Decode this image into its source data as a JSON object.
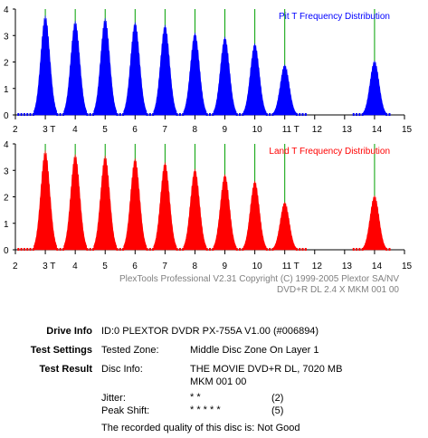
{
  "chart_data": [
    {
      "type": "area",
      "title": "Pit T Frequency Distribution",
      "color": "#0000ff",
      "x_range": [
        2,
        15
      ],
      "y_range": [
        0,
        4
      ],
      "x_ticks": [
        "2",
        "3 T",
        "4",
        "5",
        "6",
        "7",
        "8",
        "9",
        "10",
        "11 T",
        "12",
        "13",
        "14",
        "15"
      ],
      "y_ticks": [
        "0",
        "1",
        "2",
        "3",
        "4"
      ],
      "grid_lines_x": [
        3,
        4,
        5,
        6,
        7,
        8,
        9,
        10,
        11,
        14
      ],
      "grid_color": "#00a000",
      "peaks": [
        {
          "T": 3,
          "value": 3.75
        },
        {
          "T": 4,
          "value": 3.55
        },
        {
          "T": 5,
          "value": 3.65
        },
        {
          "T": 6,
          "value": 3.5
        },
        {
          "T": 7,
          "value": 3.4
        },
        {
          "T": 8,
          "value": 3.1
        },
        {
          "T": 9,
          "value": 2.95
        },
        {
          "T": 10,
          "value": 2.7
        },
        {
          "T": 11,
          "value": 1.9
        },
        {
          "T": 14,
          "value": 2.05
        }
      ]
    },
    {
      "type": "area",
      "title": "Land T Frequency Distribution",
      "color": "#ff0000",
      "x_range": [
        2,
        15
      ],
      "y_range": [
        0,
        4
      ],
      "x_ticks": [
        "2",
        "3 T",
        "4",
        "5",
        "6",
        "7",
        "8",
        "9",
        "10",
        "11 T",
        "12",
        "13",
        "14",
        "15"
      ],
      "y_ticks": [
        "0",
        "1",
        "2",
        "3",
        "4"
      ],
      "grid_lines_x": [
        3,
        4,
        5,
        6,
        7,
        8,
        9,
        10,
        11,
        14
      ],
      "grid_color": "#00a000",
      "peaks": [
        {
          "T": 3,
          "value": 3.75
        },
        {
          "T": 4,
          "value": 3.6
        },
        {
          "T": 5,
          "value": 3.55
        },
        {
          "T": 6,
          "value": 3.45
        },
        {
          "T": 7,
          "value": 3.3
        },
        {
          "T": 8,
          "value": 3.05
        },
        {
          "T": 9,
          "value": 2.85
        },
        {
          "T": 10,
          "value": 2.6
        },
        {
          "T": 11,
          "value": 1.8
        },
        {
          "T": 14,
          "value": 2.05
        }
      ]
    }
  ],
  "footer": {
    "line1": "PlexTools Professional V2.31 Copyright (C) 1999-2005 Plextor SA/NV",
    "line2": "DVD+R DL   2.4 X   MKM 001 00"
  },
  "info": {
    "drive_label": "Drive Info",
    "drive_value": "ID:0 PLEXTOR DVDR PX-755A V1.00 (#006894)",
    "settings_label": "Test Settings",
    "zone_label": "Tested Zone:",
    "zone_value": "Middle Disc Zone On Layer 1",
    "result_label": "Test Result",
    "disc_label": "Disc Info:",
    "disc_value_1": "THE MOVIE  DVD+R DL, 7020 MB",
    "disc_value_2": "MKM 001 00",
    "jitter_label": "Jitter:",
    "jitter_stars": "* *",
    "jitter_score": "(2)",
    "peak_label": "Peak Shift:",
    "peak_stars": "* * * * *",
    "peak_score": "(5)",
    "quality_text": "The recorded quality of this disc is: Not Good"
  }
}
